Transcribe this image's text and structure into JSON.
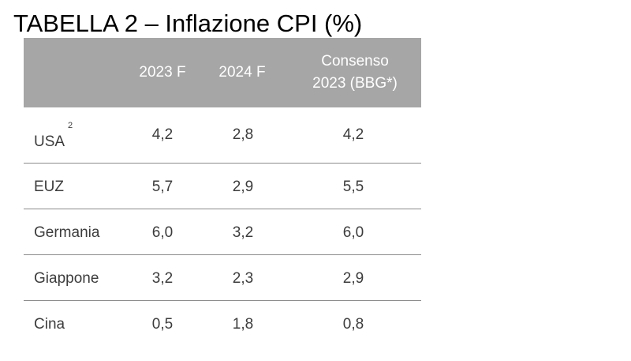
{
  "title": "TABELLA 2 – Inflazione CPI (%)",
  "table": {
    "headers": {
      "col1": "2023 F",
      "col2": "2024 F",
      "col3_line1": "Consenso",
      "col3_line2": "2023 (BBG*)"
    },
    "rows": [
      {
        "label": "USA",
        "note": "2",
        "c1": "4,2",
        "c2": "2,8",
        "c3": "4,2"
      },
      {
        "label": "EUZ",
        "c1": "5,7",
        "c2": "2,9",
        "c3": "5,5"
      },
      {
        "label": "Germania",
        "c1": "6,0",
        "c2": "3,2",
        "c3": "6,0"
      },
      {
        "label": "Giappone",
        "c1": "3,2",
        "c2": "2,3",
        "c3": "2,9"
      },
      {
        "label": "Cina",
        "c1": "0,5",
        "c2": "1,8",
        "c3": "0,8"
      }
    ]
  }
}
